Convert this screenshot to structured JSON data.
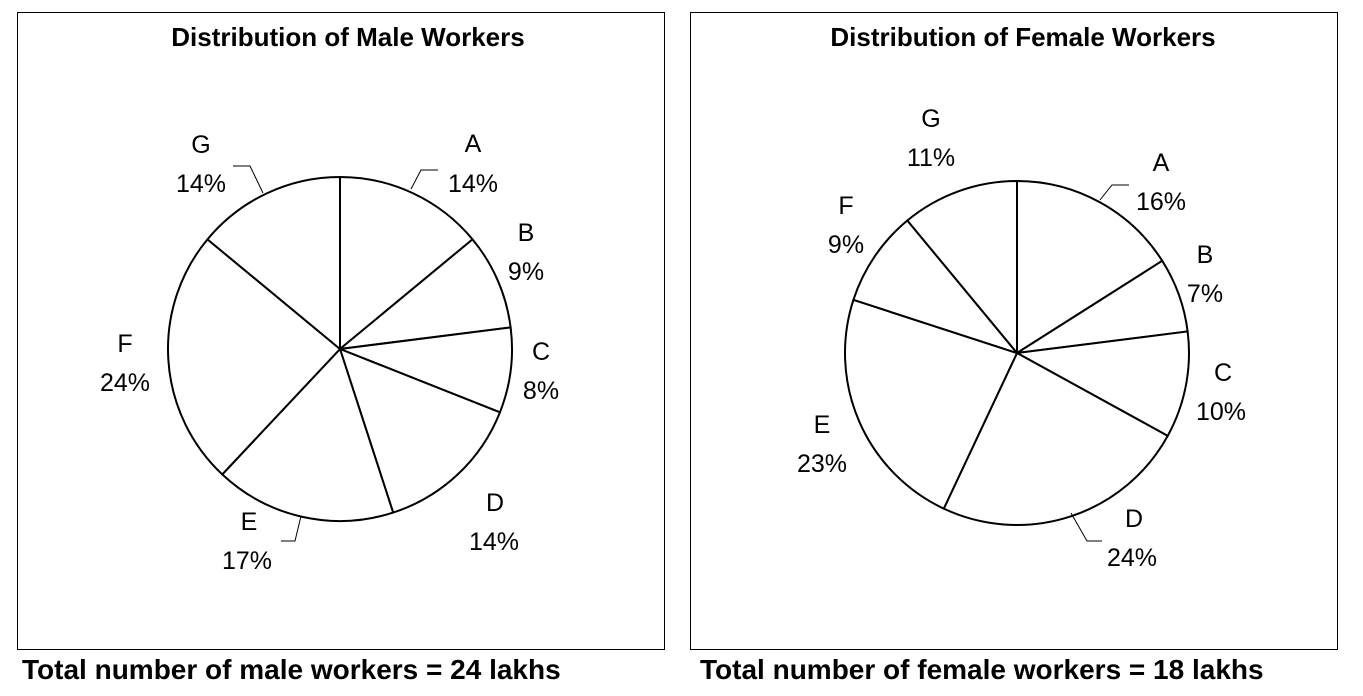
{
  "chart_data": [
    {
      "type": "pie",
      "title": "Distribution of Male Workers",
      "categories": [
        "A",
        "B",
        "C",
        "D",
        "E",
        "F",
        "G"
      ],
      "values": [
        14,
        9,
        8,
        14,
        17,
        24,
        14
      ],
      "value_labels": [
        "14%",
        "9%",
        "8%",
        "14%",
        "17%",
        "24%",
        "14%"
      ],
      "start_angle_deg": 0,
      "direction": "clockwise",
      "fill": "#ffffff",
      "stroke": "#000000",
      "footer": "Total number of male workers = 24 lakhs"
    },
    {
      "type": "pie",
      "title": "Distribution of Female Workers",
      "categories": [
        "A",
        "B",
        "C",
        "D",
        "E",
        "F",
        "G"
      ],
      "values": [
        16,
        7,
        10,
        24,
        23,
        9,
        11
      ],
      "value_labels": [
        "16%",
        "7%",
        "10%",
        "24%",
        "23%",
        "9%",
        "11%"
      ],
      "start_angle_deg": 0,
      "direction": "clockwise",
      "fill": "#ffffff",
      "stroke": "#000000",
      "footer": "Total number of female workers = 18 lakhs"
    }
  ]
}
